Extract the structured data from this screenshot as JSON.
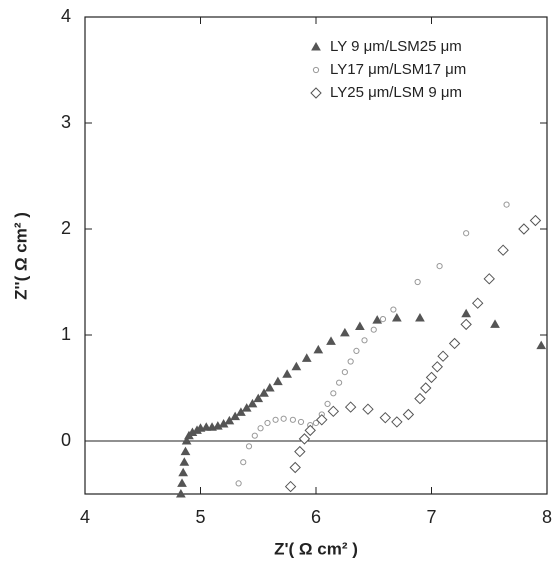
{
  "chart_data": {
    "type": "scatter",
    "xlabel": "Z'( Ω cm² )",
    "ylabel": "Z''( Ω cm² )",
    "xlim": [
      4,
      8
    ],
    "ylim": [
      -0.5,
      4
    ],
    "xticks": [
      4,
      5,
      6,
      7,
      8
    ],
    "yticks": [
      0,
      1,
      2,
      3,
      4
    ],
    "zero_line": true,
    "legend": "upper right",
    "series": [
      {
        "name": "LY  9 μm/LSM25 μm",
        "color": "#555555",
        "marker": "triangle",
        "x": [
          4.83,
          4.84,
          4.85,
          4.86,
          4.87,
          4.88,
          4.9,
          4.93,
          4.97,
          5.0,
          5.05,
          5.1,
          5.15,
          5.2,
          5.25,
          5.3,
          5.35,
          5.4,
          5.45,
          5.5,
          5.55,
          5.6,
          5.67,
          5.75,
          5.83,
          5.92,
          6.02,
          6.13,
          6.25,
          6.38,
          6.53,
          6.7,
          6.9,
          7.3,
          7.55,
          7.95
        ],
        "values": [
          -0.5,
          -0.4,
          -0.3,
          -0.2,
          -0.1,
          0.0,
          0.05,
          0.08,
          0.1,
          0.12,
          0.13,
          0.13,
          0.14,
          0.16,
          0.19,
          0.23,
          0.27,
          0.31,
          0.35,
          0.4,
          0.45,
          0.5,
          0.56,
          0.63,
          0.7,
          0.78,
          0.86,
          0.94,
          1.02,
          1.08,
          1.14,
          1.16,
          1.16,
          1.2,
          1.1,
          0.9
        ]
      },
      {
        "name": "LY17 μm/LSM17 μm",
        "color": "#999999",
        "marker": "circle",
        "x": [
          5.33,
          5.37,
          5.42,
          5.47,
          5.52,
          5.58,
          5.65,
          5.72,
          5.8,
          5.87,
          5.95,
          6.0,
          6.05,
          6.1,
          6.15,
          6.2,
          6.25,
          6.3,
          6.35,
          6.42,
          6.5,
          6.58,
          6.67,
          6.88,
          7.07,
          7.3,
          7.65
        ],
        "values": [
          -0.4,
          -0.2,
          -0.05,
          0.05,
          0.12,
          0.17,
          0.2,
          0.21,
          0.2,
          0.18,
          0.15,
          0.17,
          0.25,
          0.35,
          0.45,
          0.55,
          0.65,
          0.75,
          0.85,
          0.95,
          1.05,
          1.15,
          1.24,
          1.5,
          1.65,
          1.96,
          2.23
        ]
      },
      {
        "name": "LY25 μm/LSM  9 μm",
        "color": "#555555",
        "marker": "diamond",
        "x": [
          5.78,
          5.82,
          5.86,
          5.9,
          5.95,
          6.05,
          6.15,
          6.3,
          6.45,
          6.6,
          6.7,
          6.8,
          6.9,
          6.95,
          7.0,
          7.05,
          7.1,
          7.2,
          7.3,
          7.4,
          7.5,
          7.62,
          7.8,
          7.9
        ],
        "values": [
          -0.43,
          -0.25,
          -0.1,
          0.02,
          0.1,
          0.2,
          0.28,
          0.32,
          0.3,
          0.22,
          0.18,
          0.25,
          0.4,
          0.5,
          0.6,
          0.7,
          0.8,
          0.92,
          1.1,
          1.3,
          1.53,
          1.8,
          2.0,
          2.08
        ]
      }
    ]
  }
}
